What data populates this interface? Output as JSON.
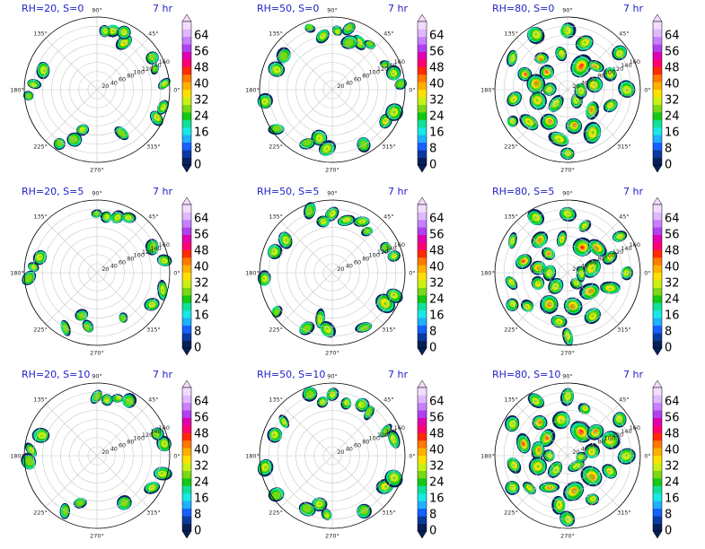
{
  "colors": {
    "title": "#1f1fc8",
    "grid": "#c8c8c8",
    "outline": "#000000"
  },
  "colorbar": {
    "ticks": [
      "0",
      "8",
      "16",
      "24",
      "32",
      "40",
      "48",
      "56",
      "64"
    ],
    "extend": "both",
    "levels": [
      "#06205a",
      "#0a3aa0",
      "#1560ff",
      "#1fb0ff",
      "#18e8e8",
      "#10e09a",
      "#14c814",
      "#7ad814",
      "#c8f014",
      "#ffe000",
      "#ffb000",
      "#ff7a00",
      "#ff2a00",
      "#ff0070",
      "#e000b0",
      "#b040f0",
      "#c880ff",
      "#e0b8ff",
      "#f3dcff"
    ]
  },
  "chart_data": [
    {
      "type": "heatmap",
      "projection": "polar",
      "title": "RH=20, S=0",
      "time": "7 hr",
      "angular_ticks": [
        "0°",
        "45°",
        "90°",
        "135°",
        "180°",
        "225°",
        "270°",
        "315°"
      ],
      "radial_ticks": [
        "20",
        "40",
        "60",
        "80",
        "100",
        "120",
        "140",
        "160"
      ],
      "rmax": 160,
      "blobs": [
        [
          60,
          120,
          0.8
        ],
        [
          75,
          135,
          0.7
        ],
        [
          82,
          130,
          0.6
        ],
        [
          65,
          140,
          0.6
        ],
        [
          160,
          125,
          0.7
        ],
        [
          175,
          140,
          0.6
        ],
        [
          185,
          150,
          0.5
        ],
        [
          250,
          95,
          0.6
        ],
        [
          235,
          145,
          0.5
        ],
        [
          245,
          120,
          0.5
        ],
        [
          300,
          110,
          0.5
        ],
        [
          335,
          145,
          0.8
        ],
        [
          345,
          150,
          0.7
        ],
        [
          5,
          150,
          0.6
        ],
        [
          20,
          135,
          0.5
        ],
        [
          30,
          140,
          0.5
        ]
      ]
    },
    {
      "type": "heatmap",
      "projection": "polar",
      "title": "RH=50, S=0",
      "time": "7 hr",
      "angular_ticks": [
        "0°",
        "45°",
        "90°",
        "135°",
        "180°",
        "225°",
        "270°",
        "315°"
      ],
      "radial_ticks": [
        "20",
        "40",
        "60",
        "80",
        "100",
        "120",
        "140",
        "160"
      ],
      "rmax": 160,
      "blobs": [
        [
          85,
          130,
          0.6
        ],
        [
          100,
          120,
          0.6
        ],
        [
          60,
          120,
          0.7
        ],
        [
          70,
          110,
          0.5
        ],
        [
          50,
          130,
          0.5
        ],
        [
          110,
          145,
          0.5
        ],
        [
          145,
          130,
          0.5
        ],
        [
          160,
          130,
          0.6
        ],
        [
          190,
          150,
          0.6
        ],
        [
          215,
          150,
          0.5
        ],
        [
          255,
          110,
          0.7
        ],
        [
          265,
          130,
          0.6
        ],
        [
          245,
          130,
          0.5
        ],
        [
          300,
          140,
          0.5
        ],
        [
          330,
          135,
          0.8
        ],
        [
          340,
          145,
          0.7
        ],
        [
          15,
          140,
          0.6
        ],
        [
          25,
          130,
          0.5
        ],
        [
          5,
          150,
          0.5
        ],
        [
          75,
          140,
          0.5
        ]
      ]
    },
    {
      "type": "heatmap",
      "projection": "polar",
      "title": "RH=80, S=0",
      "time": "7 hr",
      "angular_ticks": [
        "0°",
        "45°",
        "90°",
        "135°",
        "180°",
        "225°",
        "270°",
        "315°"
      ],
      "radial_ticks": [
        "20",
        "40",
        "60",
        "80",
        "100",
        "120",
        "140",
        "160"
      ],
      "rmax": 160,
      "blobs": [
        [
          140,
          60,
          1
        ],
        [
          130,
          90,
          0.9
        ],
        [
          160,
          100,
          1
        ],
        [
          170,
          70,
          0.9
        ],
        [
          60,
          60,
          1
        ],
        [
          40,
          80,
          0.9
        ],
        [
          70,
          110,
          0.8
        ],
        [
          20,
          100,
          0.8
        ],
        [
          10,
          60,
          0.8
        ],
        [
          0,
          130,
          0.7
        ],
        [
          340,
          100,
          0.8
        ],
        [
          320,
          70,
          0.9
        ],
        [
          300,
          110,
          0.8
        ],
        [
          280,
          80,
          0.9
        ],
        [
          260,
          110,
          0.8
        ],
        [
          240,
          80,
          0.9
        ],
        [
          220,
          110,
          0.8
        ],
        [
          200,
          70,
          0.8
        ],
        [
          190,
          120,
          0.8
        ],
        [
          210,
          140,
          0.6
        ],
        [
          120,
          140,
          0.7
        ],
        [
          90,
          130,
          0.7
        ],
        [
          100,
          80,
          0.8
        ],
        [
          230,
          40,
          0.7
        ],
        [
          310,
          30,
          0.6
        ],
        [
          35,
          140,
          0.6
        ],
        [
          150,
          140,
          0.6
        ],
        [
          270,
          140,
          0.6
        ],
        [
          355,
          30,
          0.6
        ],
        [
          180,
          40,
          0.6
        ]
      ]
    },
    {
      "type": "heatmap",
      "projection": "polar",
      "title": "RH=20, S=5",
      "time": "7 hr",
      "angular_ticks": [
        "0°",
        "45°",
        "90°",
        "135°",
        "180°",
        "225°",
        "270°",
        "315°"
      ],
      "radial_ticks": [
        "20",
        "40",
        "60",
        "80",
        "100",
        "120",
        "140",
        "160"
      ],
      "rmax": 160,
      "blobs": [
        [
          70,
          130,
          0.7
        ],
        [
          80,
          125,
          0.6
        ],
        [
          60,
          140,
          0.6
        ],
        [
          90,
          130,
          0.5
        ],
        [
          165,
          130,
          0.6
        ],
        [
          175,
          140,
          0.6
        ],
        [
          185,
          150,
          0.5
        ],
        [
          250,
          100,
          0.5
        ],
        [
          240,
          140,
          0.5
        ],
        [
          260,
          120,
          0.5
        ],
        [
          300,
          115,
          0.5
        ],
        [
          330,
          140,
          0.7
        ],
        [
          345,
          150,
          0.7
        ],
        [
          10,
          150,
          0.6
        ],
        [
          25,
          135,
          0.5
        ]
      ]
    },
    {
      "type": "heatmap",
      "projection": "polar",
      "title": "RH=50, S=5",
      "time": "7 hr",
      "angular_ticks": [
        "0°",
        "45°",
        "90°",
        "135°",
        "180°",
        "225°",
        "270°",
        "315°"
      ],
      "radial_ticks": [
        "20",
        "40",
        "60",
        "80",
        "100",
        "120",
        "140",
        "160"
      ],
      "rmax": 160,
      "blobs": [
        [
          90,
          130,
          0.7
        ],
        [
          100,
          115,
          0.6
        ],
        [
          75,
          120,
          0.6
        ],
        [
          60,
          130,
          0.6
        ],
        [
          50,
          120,
          0.5
        ],
        [
          110,
          145,
          0.5
        ],
        [
          145,
          125,
          0.6
        ],
        [
          160,
          135,
          0.6
        ],
        [
          185,
          150,
          0.6
        ],
        [
          215,
          150,
          0.5
        ],
        [
          255,
          105,
          0.7
        ],
        [
          265,
          125,
          0.6
        ],
        [
          245,
          135,
          0.5
        ],
        [
          300,
          140,
          0.5
        ],
        [
          330,
          135,
          0.8
        ],
        [
          340,
          145,
          0.7
        ],
        [
          15,
          140,
          0.6
        ],
        [
          25,
          130,
          0.5
        ]
      ]
    },
    {
      "type": "heatmap",
      "projection": "polar",
      "title": "RH=80, S=5",
      "time": "7 hr",
      "angular_ticks": [
        "0°",
        "45°",
        "90°",
        "135°",
        "180°",
        "225°",
        "270°",
        "315°"
      ],
      "radial_ticks": [
        "20",
        "40",
        "60",
        "80",
        "100",
        "120",
        "140",
        "160"
      ],
      "rmax": 160,
      "blobs": [
        [
          135,
          60,
          1
        ],
        [
          130,
          95,
          0.9
        ],
        [
          165,
          100,
          1
        ],
        [
          170,
          65,
          0.9
        ],
        [
          60,
          65,
          1
        ],
        [
          40,
          85,
          0.9
        ],
        [
          70,
          110,
          0.8
        ],
        [
          20,
          100,
          0.8
        ],
        [
          10,
          55,
          0.8
        ],
        [
          0,
          130,
          0.7
        ],
        [
          340,
          100,
          0.8
        ],
        [
          320,
          65,
          0.9
        ],
        [
          300,
          110,
          0.8
        ],
        [
          280,
          75,
          0.9
        ],
        [
          260,
          110,
          0.8
        ],
        [
          240,
          80,
          0.9
        ],
        [
          220,
          115,
          0.8
        ],
        [
          200,
          70,
          0.8
        ],
        [
          190,
          125,
          0.8
        ],
        [
          210,
          140,
          0.6
        ],
        [
          120,
          140,
          0.7
        ],
        [
          90,
          130,
          0.7
        ],
        [
          100,
          75,
          0.8
        ],
        [
          230,
          40,
          0.7
        ],
        [
          310,
          30,
          0.6
        ],
        [
          35,
          140,
          0.6
        ],
        [
          150,
          140,
          0.6
        ],
        [
          270,
          140,
          0.6
        ],
        [
          355,
          30,
          0.6
        ],
        [
          180,
          40,
          0.6
        ]
      ]
    },
    {
      "type": "heatmap",
      "projection": "polar",
      "title": "RH=20, S=10",
      "time": "7 hr",
      "angular_ticks": [
        "0°",
        "45°",
        "90°",
        "135°",
        "180°",
        "225°",
        "270°",
        "315°"
      ],
      "radial_ticks": [
        "20",
        "40",
        "60",
        "80",
        "100",
        "120",
        "140",
        "160"
      ],
      "rmax": 160,
      "blobs": [
        [
          80,
          125,
          0.7
        ],
        [
          70,
          135,
          0.6
        ],
        [
          90,
          130,
          0.5
        ],
        [
          60,
          140,
          0.5
        ],
        [
          160,
          130,
          0.6
        ],
        [
          175,
          145,
          0.6
        ],
        [
          185,
          150,
          0.5
        ],
        [
          250,
          110,
          0.5
        ],
        [
          240,
          140,
          0.5
        ],
        [
          330,
          140,
          0.7
        ],
        [
          345,
          150,
          0.6
        ],
        [
          10,
          150,
          0.6
        ],
        [
          20,
          140,
          0.5
        ],
        [
          300,
          120,
          0.5
        ]
      ]
    },
    {
      "type": "heatmap",
      "projection": "polar",
      "title": "RH=50, S=10",
      "time": "7 hr",
      "angular_ticks": [
        "0°",
        "45°",
        "90°",
        "135°",
        "180°",
        "225°",
        "270°",
        "315°"
      ],
      "radial_ticks": [
        "20",
        "40",
        "60",
        "80",
        "100",
        "120",
        "140",
        "160"
      ],
      "rmax": 160,
      "blobs": [
        [
          90,
          135,
          0.7
        ],
        [
          100,
          120,
          0.6
        ],
        [
          75,
          120,
          0.6
        ],
        [
          60,
          130,
          0.6
        ],
        [
          50,
          125,
          0.5
        ],
        [
          110,
          145,
          0.5
        ],
        [
          145,
          130,
          0.6
        ],
        [
          160,
          135,
          0.6
        ],
        [
          190,
          150,
          0.6
        ],
        [
          215,
          150,
          0.5
        ],
        [
          255,
          110,
          0.7
        ],
        [
          265,
          130,
          0.6
        ],
        [
          245,
          130,
          0.5
        ],
        [
          300,
          140,
          0.5
        ],
        [
          330,
          135,
          0.8
        ],
        [
          340,
          145,
          0.7
        ],
        [
          15,
          140,
          0.6
        ],
        [
          25,
          130,
          0.5
        ]
      ]
    },
    {
      "type": "heatmap",
      "projection": "polar",
      "title": "RH=80, S=10",
      "time": "7 hr",
      "angular_ticks": [
        "0°",
        "45°",
        "90°",
        "135°",
        "180°",
        "225°",
        "270°",
        "315°"
      ],
      "radial_ticks": [
        "20",
        "40",
        "60",
        "80",
        "100",
        "120",
        "140",
        "160"
      ],
      "rmax": 160,
      "blobs": [
        [
          140,
          60,
          1
        ],
        [
          130,
          95,
          0.9
        ],
        [
          165,
          100,
          1
        ],
        [
          170,
          65,
          0.9
        ],
        [
          60,
          60,
          1
        ],
        [
          40,
          80,
          0.9
        ],
        [
          70,
          110,
          0.8
        ],
        [
          20,
          100,
          0.8
        ],
        [
          10,
          55,
          0.8
        ],
        [
          0,
          130,
          0.7
        ],
        [
          340,
          100,
          0.8
        ],
        [
          320,
          70,
          0.9
        ],
        [
          300,
          110,
          0.8
        ],
        [
          280,
          80,
          0.9
        ],
        [
          260,
          110,
          0.8
        ],
        [
          240,
          80,
          0.9
        ],
        [
          220,
          110,
          0.8
        ],
        [
          200,
          70,
          0.8
        ],
        [
          190,
          120,
          0.8
        ],
        [
          210,
          140,
          0.6
        ],
        [
          120,
          140,
          0.7
        ],
        [
          90,
          130,
          0.7
        ],
        [
          100,
          80,
          0.8
        ],
        [
          230,
          40,
          0.7
        ],
        [
          310,
          30,
          0.6
        ],
        [
          35,
          140,
          0.6
        ],
        [
          150,
          140,
          0.6
        ],
        [
          270,
          140,
          0.6
        ],
        [
          355,
          30,
          0.6
        ],
        [
          180,
          40,
          0.6
        ]
      ]
    }
  ]
}
